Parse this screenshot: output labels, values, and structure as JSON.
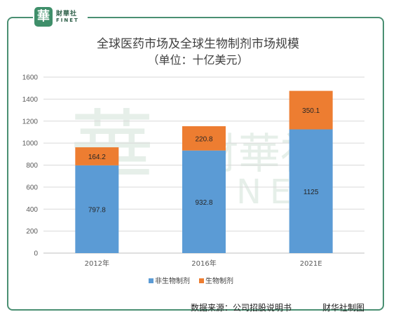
{
  "logo": {
    "mark": "華",
    "cn": "財華社",
    "en": "FINET"
  },
  "watermark": {
    "cn": "財華社",
    "en": "FINET"
  },
  "footer": {
    "source": "数据来源：公司招股说明书",
    "credit": "财华社制图"
  },
  "colors": {
    "frame": "#4a8f72",
    "series1": "#5b9bd5",
    "series2": "#ed7d31",
    "grid": "#d9d9d9"
  },
  "chart_data": {
    "type": "bar",
    "stacked": true,
    "title": "全球医药市场及全球生物制剂市场规模",
    "subtitle": "（单位：十亿美元）",
    "categories": [
      "2012年",
      "2016年",
      "2021E"
    ],
    "series": [
      {
        "name": "非生物制剂",
        "values": [
          797.8,
          932.8,
          1125
        ],
        "labels": [
          "797.8",
          "932.8",
          "1125"
        ]
      },
      {
        "name": "生物制剂",
        "values": [
          164.2,
          220.8,
          350.1
        ],
        "labels": [
          "164.2",
          "220.8",
          "350.1"
        ]
      }
    ],
    "ylim": [
      0,
      1600
    ],
    "yticks": [
      0,
      200,
      400,
      600,
      800,
      1000,
      1200,
      1400,
      1600
    ],
    "grid": true,
    "legend": "bottom"
  }
}
